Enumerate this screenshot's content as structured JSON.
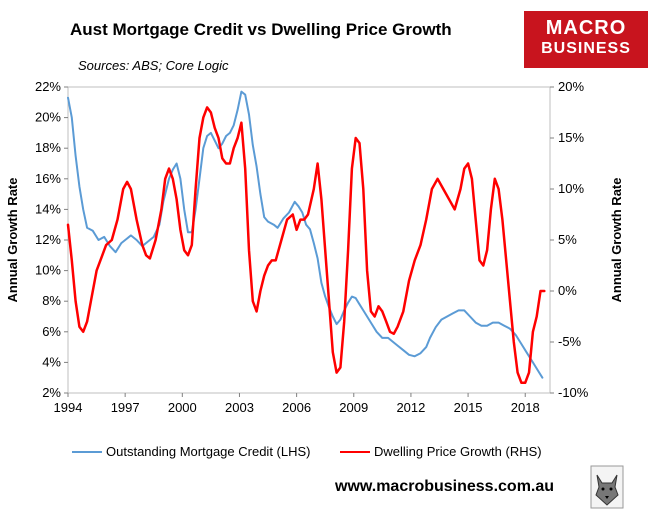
{
  "title": "Aust Mortgage Credit vs Dwelling Price Growth",
  "sources": "Sources: ABS; Core Logic",
  "logo": {
    "line1": "MACRO",
    "line2": "BUSINESS",
    "bg_color": "#c8141e"
  },
  "footer_url": "www.macrobusiness.com.au",
  "chart_data": {
    "type": "line",
    "left_axis": {
      "title": "Annual Growth Rate",
      "range": [
        2,
        22
      ],
      "ticks": [
        2,
        4,
        6,
        8,
        10,
        12,
        14,
        16,
        18,
        20,
        22
      ],
      "tick_labels": [
        "2%",
        "4%",
        "6%",
        "8%",
        "10%",
        "12%",
        "14%",
        "16%",
        "18%",
        "20%",
        "22%"
      ]
    },
    "right_axis": {
      "title": "Annual Growth Rate",
      "range": [
        -10,
        20
      ],
      "ticks": [
        -10,
        -5,
        0,
        5,
        10,
        15,
        20
      ],
      "tick_labels": [
        "-10%",
        "-5%",
        "0%",
        "5%",
        "10%",
        "15%",
        "20%"
      ]
    },
    "x_axis": {
      "range": [
        1994,
        2019.3
      ],
      "ticks": [
        1994,
        1997,
        2000,
        2003,
        2006,
        2009,
        2012,
        2015,
        2018
      ],
      "tick_labels": [
        "1994",
        "1997",
        "2000",
        "2003",
        "2006",
        "2009",
        "2012",
        "2015",
        "2018"
      ]
    },
    "series": [
      {
        "name": "Outstanding Mortgage Credit (LHS)",
        "axis": "left",
        "color": "#5b9bd5",
        "x": [
          1994.0,
          1994.2,
          1994.4,
          1994.6,
          1994.8,
          1995.0,
          1995.3,
          1995.6,
          1995.9,
          1996.2,
          1996.5,
          1996.8,
          1997.0,
          1997.3,
          1997.6,
          1997.9,
          1998.2,
          1998.5,
          1998.8,
          1999.0,
          1999.3,
          1999.5,
          1999.7,
          1999.9,
          2000.1,
          2000.3,
          2000.5,
          2000.7,
          2000.9,
          2001.1,
          2001.3,
          2001.5,
          2001.7,
          2001.9,
          2002.1,
          2002.3,
          2002.5,
          2002.7,
          2002.9,
          2003.1,
          2003.3,
          2003.5,
          2003.7,
          2003.9,
          2004.1,
          2004.3,
          2004.5,
          2004.8,
          2005.0,
          2005.3,
          2005.6,
          2005.9,
          2006.1,
          2006.3,
          2006.5,
          2006.7,
          2006.9,
          2007.1,
          2007.3,
          2007.5,
          2007.7,
          2007.9,
          2008.1,
          2008.3,
          2008.5,
          2008.7,
          2008.9,
          2009.1,
          2009.3,
          2009.5,
          2009.7,
          2009.9,
          2010.2,
          2010.5,
          2010.8,
          2011.0,
          2011.3,
          2011.6,
          2011.9,
          2012.2,
          2012.5,
          2012.8,
          2013.0,
          2013.3,
          2013.6,
          2013.9,
          2014.2,
          2014.5,
          2014.8,
          2015.1,
          2015.4,
          2015.7,
          2016.0,
          2016.3,
          2016.6,
          2016.9,
          2017.2,
          2017.5,
          2017.8,
          2018.1,
          2018.4,
          2018.7,
          2018.9
        ],
        "y": [
          21.3,
          20.0,
          17.5,
          15.5,
          14.0,
          12.8,
          12.6,
          12.0,
          12.2,
          11.6,
          11.2,
          11.8,
          12.0,
          12.3,
          12.0,
          11.6,
          11.9,
          12.2,
          13.0,
          14.5,
          16.0,
          16.6,
          17.0,
          16.0,
          14.0,
          12.5,
          12.5,
          14.0,
          16.0,
          18.0,
          18.8,
          19.0,
          18.5,
          18.0,
          18.3,
          18.8,
          19.0,
          19.5,
          20.5,
          21.7,
          21.5,
          20.2,
          18.2,
          16.8,
          15.0,
          13.5,
          13.2,
          13.0,
          12.8,
          13.4,
          13.8,
          14.5,
          14.2,
          13.8,
          13.0,
          12.7,
          11.8,
          10.8,
          9.2,
          8.3,
          7.6,
          7.0,
          6.5,
          6.8,
          7.4,
          7.9,
          8.3,
          8.2,
          7.8,
          7.4,
          7.0,
          6.6,
          6.0,
          5.6,
          5.6,
          5.4,
          5.1,
          4.8,
          4.5,
          4.4,
          4.6,
          5.0,
          5.6,
          6.3,
          6.8,
          7.0,
          7.2,
          7.4,
          7.4,
          7.0,
          6.6,
          6.4,
          6.4,
          6.6,
          6.6,
          6.4,
          6.2,
          5.8,
          5.2,
          4.6,
          4.0,
          3.4,
          3.0
        ]
      },
      {
        "name": "Dwelling Price Growth (RHS)",
        "axis": "right",
        "color": "#ff0000",
        "x": [
          1994.0,
          1994.2,
          1994.4,
          1994.6,
          1994.8,
          1995.0,
          1995.2,
          1995.5,
          1995.8,
          1996.0,
          1996.3,
          1996.6,
          1996.9,
          1997.1,
          1997.3,
          1997.6,
          1997.9,
          1998.1,
          1998.3,
          1998.6,
          1998.9,
          1999.1,
          1999.3,
          1999.5,
          1999.7,
          1999.9,
          2000.1,
          2000.3,
          2000.5,
          2000.7,
          2000.9,
          2001.1,
          2001.3,
          2001.5,
          2001.7,
          2001.9,
          2002.1,
          2002.3,
          2002.5,
          2002.7,
          2002.9,
          2003.1,
          2003.3,
          2003.5,
          2003.7,
          2003.9,
          2004.1,
          2004.3,
          2004.5,
          2004.7,
          2004.9,
          2005.2,
          2005.5,
          2005.8,
          2006.0,
          2006.2,
          2006.4,
          2006.6,
          2006.9,
          2007.1,
          2007.3,
          2007.5,
          2007.7,
          2007.9,
          2008.1,
          2008.3,
          2008.5,
          2008.7,
          2008.9,
          2009.1,
          2009.3,
          2009.5,
          2009.7,
          2009.9,
          2010.1,
          2010.3,
          2010.5,
          2010.7,
          2010.9,
          2011.1,
          2011.3,
          2011.6,
          2011.9,
          2012.2,
          2012.5,
          2012.8,
          2013.1,
          2013.4,
          2013.7,
          2014.0,
          2014.3,
          2014.6,
          2014.8,
          2015.0,
          2015.2,
          2015.4,
          2015.6,
          2015.8,
          2016.0,
          2016.2,
          2016.4,
          2016.6,
          2016.8,
          2017.0,
          2017.2,
          2017.4,
          2017.6,
          2017.8,
          2018.0,
          2018.2,
          2018.4,
          2018.6,
          2018.8,
          2019.0
        ],
        "y": [
          6.5,
          3.0,
          -1.0,
          -3.5,
          -4.0,
          -3.0,
          -1.0,
          2.0,
          3.5,
          4.5,
          5.0,
          7.0,
          10.0,
          10.7,
          10.0,
          7.0,
          4.5,
          3.5,
          3.2,
          5.0,
          8.0,
          11.0,
          12.0,
          11.0,
          9.0,
          6.0,
          4.0,
          3.5,
          4.5,
          10.0,
          15.0,
          17.0,
          18.0,
          17.5,
          16.0,
          15.0,
          13.0,
          12.5,
          12.5,
          14.0,
          15.0,
          16.5,
          12.0,
          4.0,
          -1.0,
          -2.0,
          0.0,
          1.5,
          2.5,
          3.0,
          3.0,
          5.0,
          7.0,
          7.5,
          6.0,
          7.0,
          7.0,
          7.5,
          10.0,
          12.5,
          9.0,
          4.0,
          -1.0,
          -6.0,
          -8.0,
          -7.5,
          -3.0,
          4.0,
          12.0,
          15.0,
          14.5,
          10.0,
          2.0,
          -2.0,
          -2.5,
          -1.5,
          -2.0,
          -3.0,
          -4.0,
          -4.2,
          -3.5,
          -2.0,
          1.0,
          3.0,
          4.5,
          7.0,
          10.0,
          11.0,
          10.0,
          9.0,
          8.0,
          10.0,
          12.0,
          12.5,
          11.0,
          7.0,
          3.0,
          2.5,
          4.0,
          8.0,
          11.0,
          10.0,
          7.0,
          3.0,
          -1.0,
          -5.0,
          -8.0,
          -9.0,
          -9.0,
          -8.0,
          -4.0,
          -2.5,
          0.0,
          0.0
        ]
      }
    ]
  }
}
